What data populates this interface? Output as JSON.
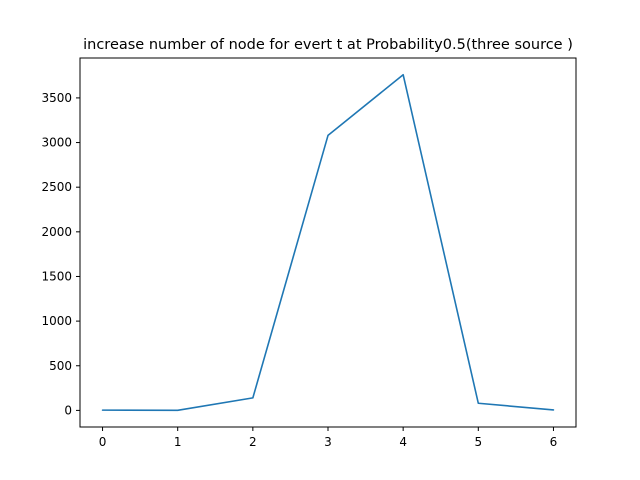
{
  "chart_data": {
    "type": "line",
    "title": "increase number of node for evert t  at Probability0.5(three source )",
    "xlabel": "",
    "ylabel": "",
    "x": [
      0,
      1,
      2,
      3,
      4,
      5,
      6
    ],
    "series": [
      {
        "values": [
          3,
          1,
          140,
          3080,
          3760,
          80,
          5
        ],
        "color": "#1f77b4"
      }
    ],
    "xlim": [
      -0.3,
      6.3
    ],
    "ylim": [
      -186,
      3947
    ],
    "x_ticks": [
      0,
      1,
      2,
      3,
      4,
      5,
      6
    ],
    "x_tick_labels": [
      "0",
      "1",
      "2",
      "3",
      "4",
      "5",
      "6"
    ],
    "y_ticks": [
      0,
      500,
      1000,
      1500,
      2000,
      2500,
      3000,
      3500
    ],
    "y_tick_labels": [
      "0",
      "500",
      "1000",
      "1500",
      "2000",
      "2500",
      "3000",
      "3500"
    ],
    "grid": false,
    "legend": "none"
  }
}
